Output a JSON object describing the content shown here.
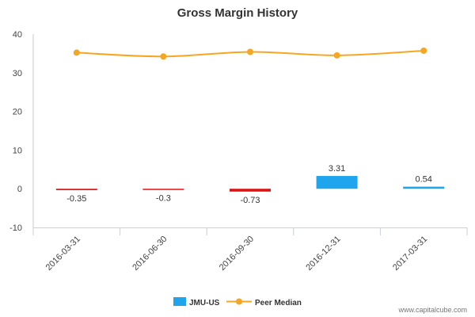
{
  "chart_data": {
    "type": "bar",
    "title": "Gross Margin History",
    "categories": [
      "2016-03-31",
      "2016-06-30",
      "2016-09-30",
      "2016-12-31",
      "2017-03-31"
    ],
    "series": [
      {
        "name": "JMU-US",
        "kind": "bar",
        "values": [
          -0.35,
          -0.3,
          -0.73,
          3.31,
          0.54
        ],
        "labels": [
          "-0.35",
          "-0.3",
          "-0.73",
          "3.31",
          "0.54"
        ],
        "color_positive": "#1ea5ee",
        "color_negative": "#dd1111"
      },
      {
        "name": "Peer Median",
        "kind": "line",
        "values": [
          35.2,
          34.2,
          35.4,
          34.5,
          35.7
        ],
        "color": "#f5a623"
      }
    ],
    "yticks": [
      40,
      30,
      20,
      10,
      0,
      -10
    ],
    "ylim": [
      -10,
      40
    ],
    "grid": false,
    "legend_position": "bottom-center"
  },
  "credit": "www.capitalcube.com"
}
